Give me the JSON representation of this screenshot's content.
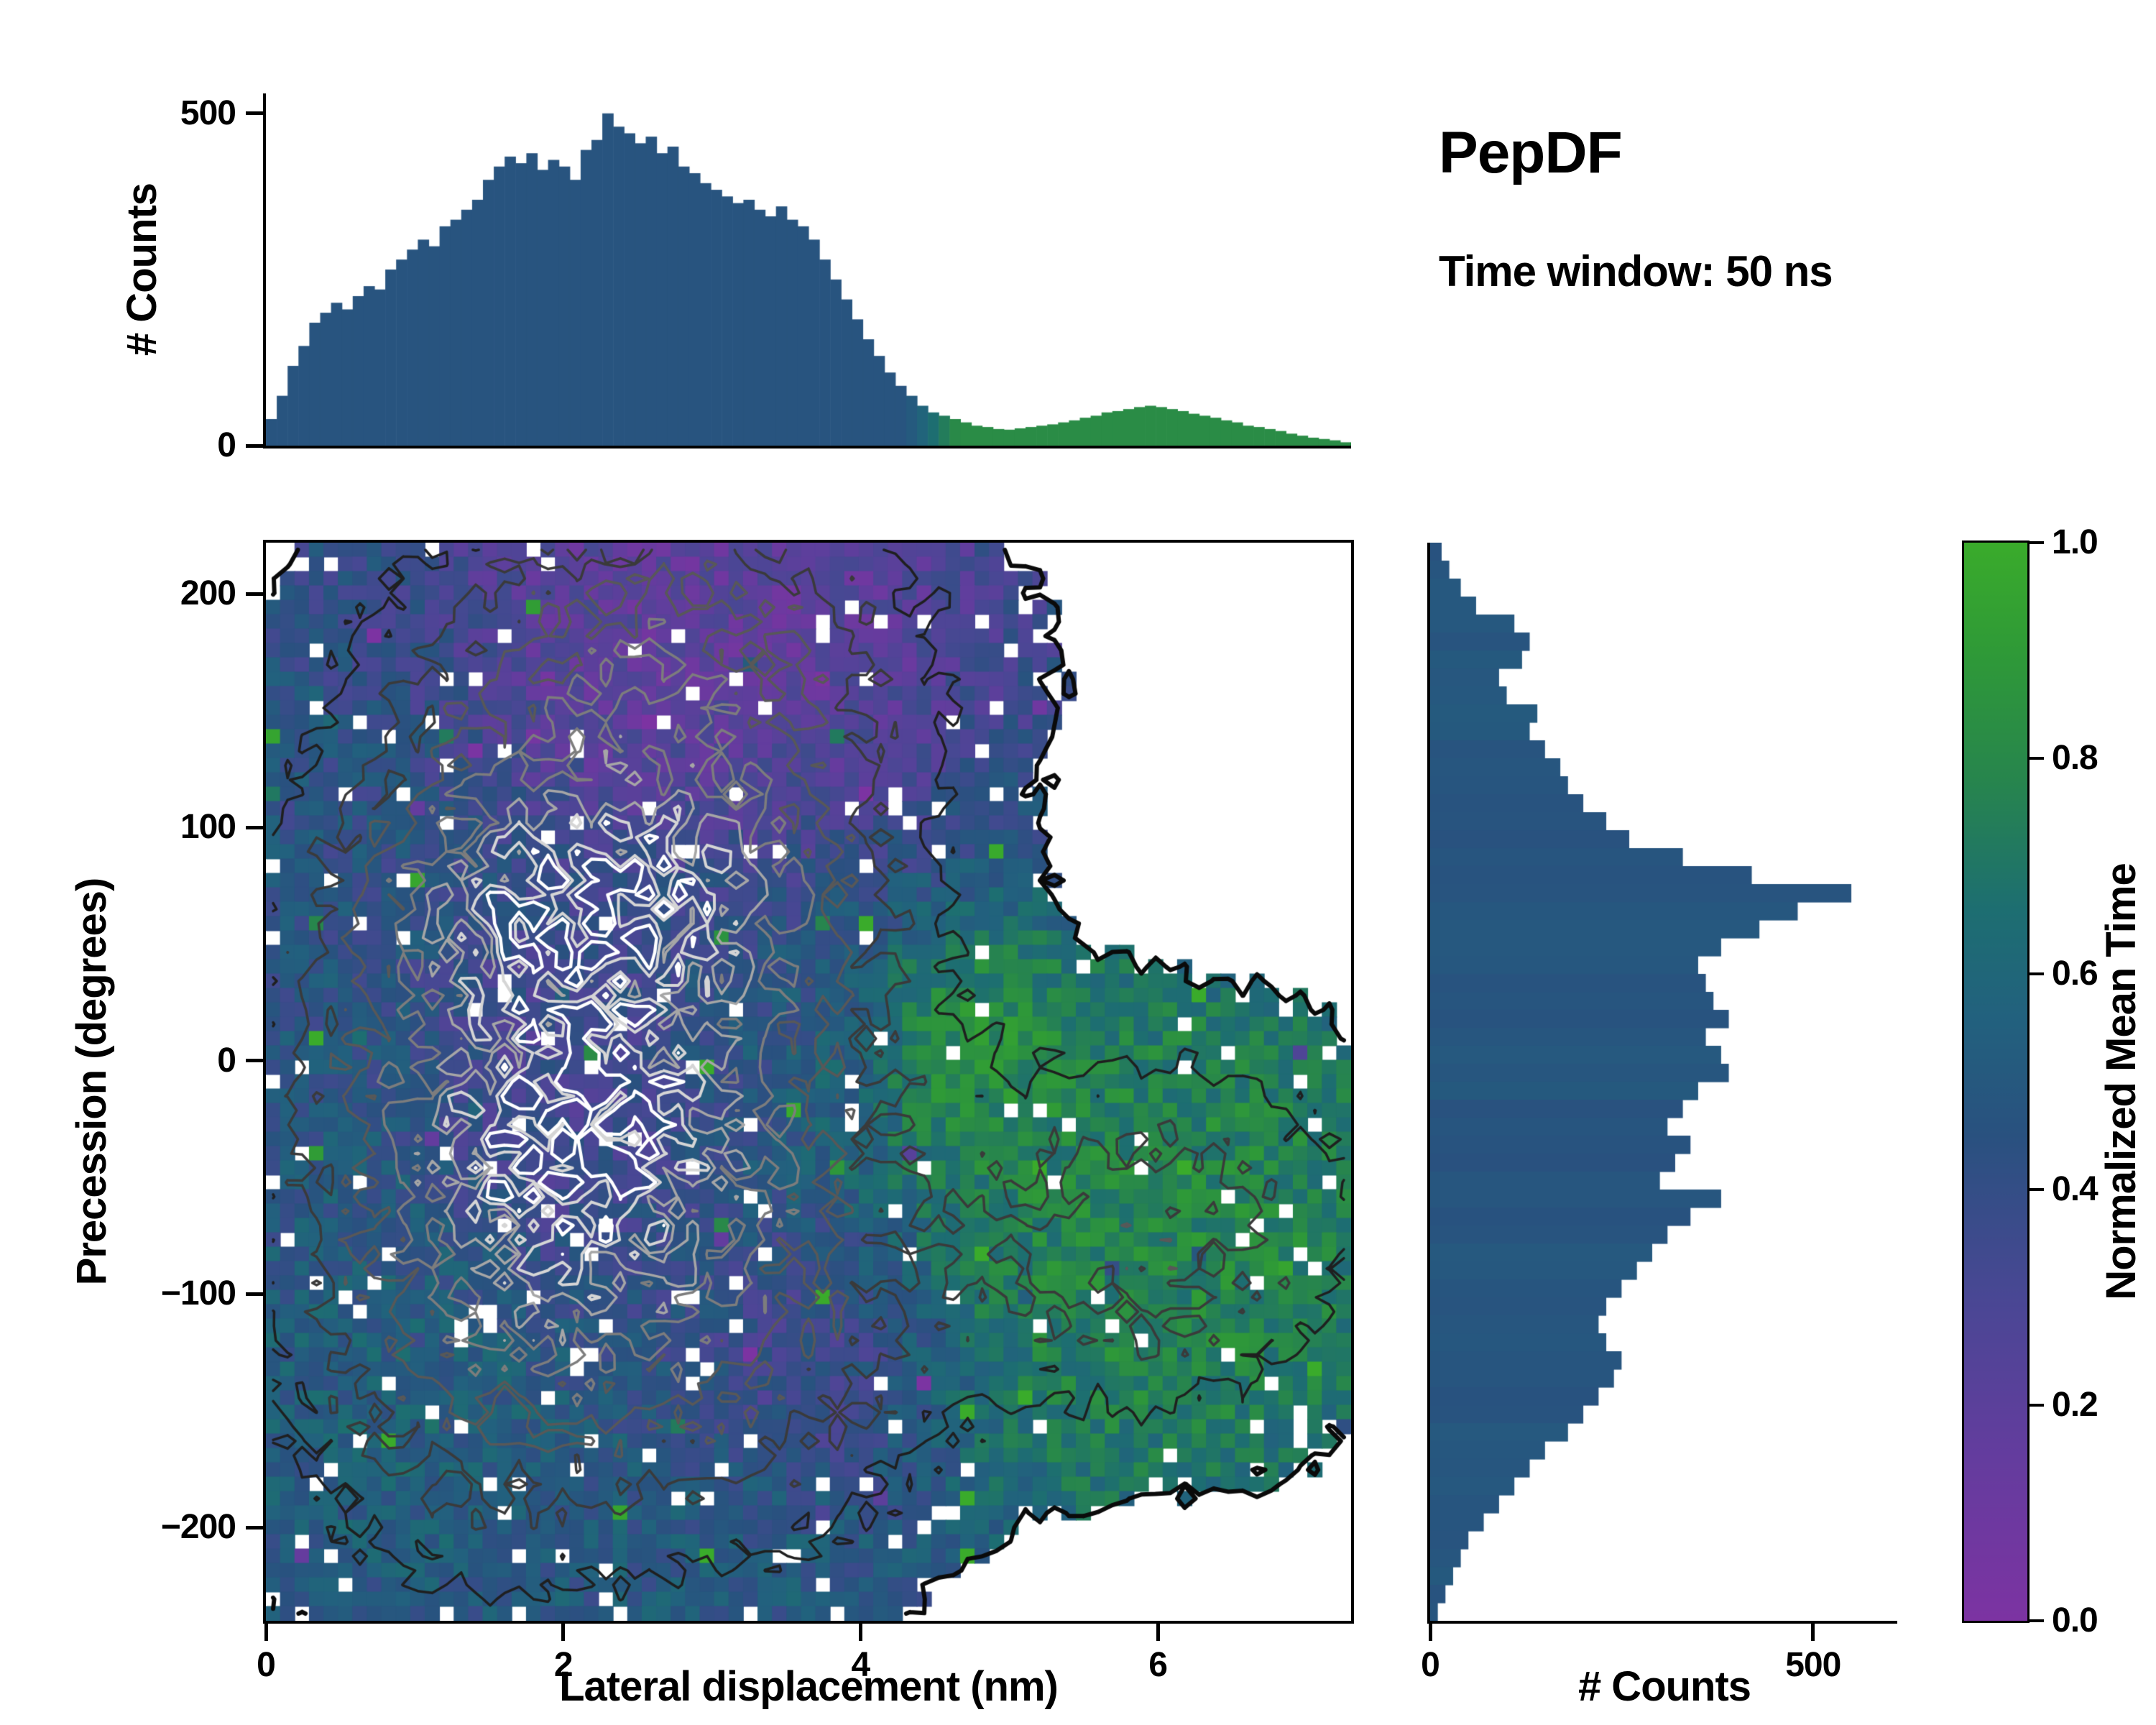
{
  "title": "PepDF",
  "subtitle": "Time window: 50 ns",
  "chart_data": {
    "type": "heatmap",
    "layout": "joint_distribution_with_marginal_histograms",
    "background": "#ffffff",
    "colormap": {
      "label": "Normalized Mean Time",
      "ticks": [
        {
          "v": 1.0,
          "label": "1.0"
        },
        {
          "v": 0.8,
          "label": "0.8"
        },
        {
          "v": 0.6,
          "label": "0.6"
        },
        {
          "v": 0.4,
          "label": "0.4"
        },
        {
          "v": 0.2,
          "label": "0.2"
        },
        {
          "v": 0.0,
          "label": "0.0"
        }
      ],
      "stops": [
        {
          "t": 0.0,
          "c": "#7c33a2"
        },
        {
          "t": 0.15,
          "c": "#643c9e"
        },
        {
          "t": 0.3,
          "c": "#494794"
        },
        {
          "t": 0.45,
          "c": "#29517f"
        },
        {
          "t": 0.56,
          "c": "#22617e"
        },
        {
          "t": 0.66,
          "c": "#1d6e71"
        },
        {
          "t": 0.78,
          "c": "#27854d"
        },
        {
          "t": 0.9,
          "c": "#2f9a37"
        },
        {
          "t": 1.0,
          "c": "#3aab2b"
        }
      ]
    },
    "main": {
      "xlabel": "Lateral displacement (nm)",
      "ylabel": "Precession (degrees)",
      "x_range": [
        0,
        7.3
      ],
      "y_range": [
        -240,
        222
      ],
      "x_ticks": [
        {
          "v": 0,
          "label": "0"
        },
        {
          "v": 2,
          "label": "2"
        },
        {
          "v": 4,
          "label": "4"
        },
        {
          "v": 6,
          "label": "6"
        }
      ],
      "y_ticks": [
        {
          "v": 200,
          "label": "200"
        },
        {
          "v": 100,
          "label": "100"
        },
        {
          "v": 0,
          "label": "0"
        },
        {
          "v": -100,
          "label": "−100"
        },
        {
          "v": -200,
          "label": "−200"
        }
      ],
      "heatmap": {
        "nx": 75,
        "ny": 75,
        "seed": 7,
        "occupancy_threshold": 0.048,
        "edge_noise": 0.6,
        "hole_fraction": 0.045,
        "value_base": 0.46,
        "value_base_weight": 1.0,
        "value_noise": 0.13,
        "spike_fraction": 0.02,
        "density_blobs": [
          {
            "x": 2.2,
            "y": 0,
            "sx": 1.2,
            "sy": 110,
            "w": 1.0
          },
          {
            "x": 2.4,
            "y": 70,
            "sx": 0.95,
            "sy": 32,
            "w": 0.5
          },
          {
            "x": 2.05,
            "y": -30,
            "sx": 0.65,
            "sy": 55,
            "w": 0.5
          },
          {
            "x": 2.3,
            "y": 20,
            "sx": 0.8,
            "sy": 22,
            "w": -0.22
          },
          {
            "x": 6.0,
            "y": -75,
            "sx": 1.0,
            "sy": 55,
            "w": 0.38
          },
          {
            "x": 2.9,
            "y": 175,
            "sx": 1.15,
            "sy": 48,
            "w": 0.35
          },
          {
            "x": 1.1,
            "y": -140,
            "sx": 0.8,
            "sy": 70,
            "w": 0.15
          },
          {
            "x": 3.7,
            "y": -140,
            "sx": 0.75,
            "sy": 55,
            "w": 0.15
          }
        ],
        "value_blobs": [
          {
            "x": 3.0,
            "y": 190,
            "sx": 1.0,
            "sy": 48,
            "v": 0.13,
            "w": 6
          },
          {
            "x": 0.8,
            "y": 175,
            "sx": 0.55,
            "sy": 45,
            "v": 0.44,
            "w": 2
          },
          {
            "x": 6.0,
            "y": -75,
            "sx": 1.0,
            "sy": 62,
            "v": 0.84,
            "w": 6
          },
          {
            "x": 4.85,
            "y": 5,
            "sx": 0.32,
            "sy": 26,
            "v": 0.88,
            "w": 5
          },
          {
            "x": 2.0,
            "y": -15,
            "sx": 0.5,
            "sy": 48,
            "v": 0.27,
            "w": 2.5
          },
          {
            "x": 3.9,
            "y": -125,
            "sx": 0.55,
            "sy": 38,
            "v": 0.22,
            "w": 2
          },
          {
            "x": 0.9,
            "y": -150,
            "sx": 0.7,
            "sy": 55,
            "v": 0.6,
            "w": 1.5
          },
          {
            "x": 3.2,
            "y": -205,
            "sx": 0.8,
            "sy": 30,
            "v": 0.55,
            "w": 1
          }
        ],
        "contour_levels": [
          {
            "level": 0.048,
            "color": "#0a0a0a",
            "width": 6
          },
          {
            "level": 0.16,
            "color": "#1f1f1f",
            "width": 3.5
          },
          {
            "level": 0.3,
            "color": "#3a3a3a",
            "width": 3.5
          },
          {
            "level": 0.47,
            "color": "#585858",
            "width": 3.5
          },
          {
            "level": 0.68,
            "color": "#7d7d7d",
            "width": 3.5
          },
          {
            "level": 0.92,
            "color": "#a6a6a6",
            "width": 3.5
          },
          {
            "level": 1.15,
            "color": "#d5d5d5",
            "width": 4
          },
          {
            "level": 1.33,
            "color": "#ffffff",
            "width": 4.5
          }
        ]
      }
    },
    "top_hist": {
      "ylabel": "# Counts",
      "y_range": [
        0,
        530
      ],
      "y_ticks": [
        {
          "v": 500,
          "label": "500"
        },
        {
          "v": 0,
          "label": "0"
        }
      ],
      "bin_x_range": [
        0,
        7.3
      ],
      "values": [
        40,
        75,
        120,
        150,
        185,
        200,
        215,
        205,
        225,
        240,
        235,
        265,
        280,
        295,
        310,
        300,
        330,
        340,
        355,
        370,
        400,
        420,
        435,
        425,
        440,
        415,
        430,
        420,
        400,
        445,
        460,
        500,
        480,
        470,
        455,
        465,
        440,
        450,
        420,
        410,
        395,
        385,
        375,
        365,
        370,
        355,
        345,
        360,
        340,
        330,
        310,
        280,
        250,
        220,
        190,
        160,
        135,
        110,
        90,
        75,
        60,
        50,
        45,
        40,
        35,
        30,
        28,
        25,
        24,
        26,
        28,
        30,
        32,
        35,
        38,
        42,
        45,
        50,
        52,
        55,
        58,
        60,
        58,
        55,
        52,
        48,
        45,
        42,
        38,
        35,
        30,
        28,
        25,
        22,
        18,
        15,
        12,
        10,
        8,
        5
      ],
      "color_rule": {
        "threshold_x": 4.3,
        "below": 0.47,
        "above": 0.82,
        "transition": 0.35
      }
    },
    "right_hist": {
      "xlabel": "# Counts",
      "x_range": [
        0,
        610
      ],
      "x_ticks": [
        {
          "v": 0,
          "label": "0"
        },
        {
          "v": 500,
          "label": "500"
        }
      ],
      "bin_y_range": [
        222,
        -240
      ],
      "values": [
        15,
        25,
        40,
        60,
        110,
        130,
        120,
        90,
        100,
        140,
        130,
        150,
        170,
        180,
        200,
        230,
        260,
        330,
        420,
        550,
        480,
        430,
        380,
        350,
        360,
        370,
        390,
        360,
        380,
        390,
        350,
        330,
        310,
        340,
        320,
        300,
        380,
        340,
        310,
        290,
        270,
        250,
        230,
        220,
        230,
        250,
        240,
        220,
        200,
        180,
        150,
        130,
        110,
        90,
        70,
        50,
        40,
        30,
        20,
        10
      ],
      "color_value": 0.48
    }
  }
}
